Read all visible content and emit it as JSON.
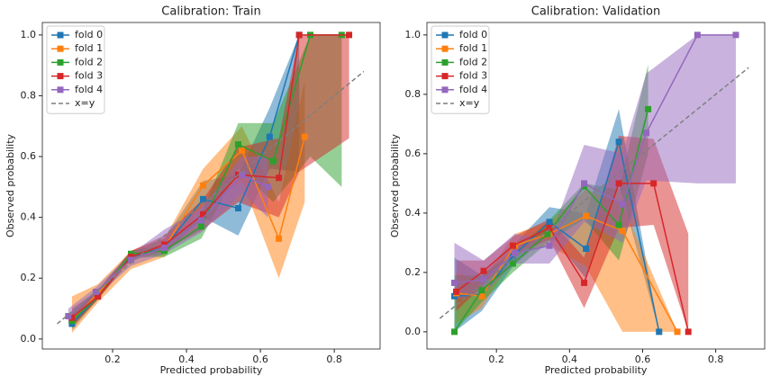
{
  "chart_data": [
    {
      "type": "line",
      "title": "Calibration: Train",
      "x_label": "Predicted probability",
      "y_label": "Observed probability",
      "xlim": [
        0.0098,
        0.924
      ],
      "ylim": [
        -0.033,
        1.041
      ],
      "xticks": [
        0.2,
        0.4,
        0.6,
        0.8
      ],
      "yticks": [
        {
          "value": 0,
          "label": "0.0"
        },
        0.2,
        0.4,
        0.6,
        0.8,
        {
          "value": 1,
          "label": "1.0"
        }
      ],
      "legend": "upper left",
      "series": [
        {
          "name": "fold 0",
          "color": "#1f77b4",
          "x": [
            0.09,
            0.16,
            0.25,
            0.34,
            0.445,
            0.54,
            0.625,
            0.705
          ],
          "values": [
            0.05,
            0.14,
            0.27,
            0.3,
            0.46,
            0.43,
            0.665,
            1.0
          ],
          "lower": [
            0.03,
            0.13,
            0.26,
            0.28,
            0.4,
            0.34,
            0.56,
            0.55
          ],
          "upper": [
            0.09,
            0.16,
            0.29,
            0.33,
            0.52,
            0.54,
            0.76,
            1.0
          ]
        },
        {
          "name": "fold 1",
          "color": "#ff7f0e",
          "x": [
            0.09,
            0.16,
            0.25,
            0.34,
            0.445,
            0.55,
            0.65,
            0.72
          ],
          "values": [
            0.06,
            0.15,
            0.26,
            0.3,
            0.505,
            0.62,
            0.33,
            0.665
          ],
          "lower": [
            0.02,
            0.12,
            0.23,
            0.27,
            0.44,
            0.52,
            0.2,
            0.45
          ],
          "upper": [
            0.14,
            0.18,
            0.29,
            0.33,
            0.56,
            0.7,
            0.45,
            0.85
          ]
        },
        {
          "name": "fold 2",
          "color": "#2ca02c",
          "x": [
            0.09,
            0.16,
            0.25,
            0.34,
            0.44,
            0.54,
            0.635,
            0.735,
            0.82
          ],
          "values": [
            0.06,
            0.14,
            0.28,
            0.29,
            0.37,
            0.64,
            0.585,
            1.0,
            1.0
          ],
          "lower": [
            0.04,
            0.13,
            0.27,
            0.27,
            0.33,
            0.56,
            0.45,
            0.6,
            0.5
          ],
          "upper": [
            0.08,
            0.16,
            0.29,
            0.31,
            0.41,
            0.71,
            0.71,
            1.0,
            1.0
          ]
        },
        {
          "name": "fold 3",
          "color": "#d62728",
          "x": [
            0.09,
            0.16,
            0.25,
            0.34,
            0.445,
            0.54,
            0.65,
            0.705,
            0.84
          ],
          "values": [
            0.07,
            0.14,
            0.27,
            0.31,
            0.41,
            0.54,
            0.53,
            1.0,
            1.0
          ],
          "lower": [
            0.04,
            0.13,
            0.26,
            0.29,
            0.36,
            0.45,
            0.4,
            0.55,
            0.66
          ],
          "upper": [
            0.1,
            0.16,
            0.29,
            0.34,
            0.46,
            0.63,
            0.66,
            1.0,
            1.0
          ]
        },
        {
          "name": "fold 4",
          "color": "#9467bd",
          "x": [
            0.08,
            0.155,
            0.25,
            0.34,
            0.44,
            0.55,
            0.62
          ],
          "values": [
            0.075,
            0.155,
            0.26,
            0.3,
            0.39,
            0.54,
            0.5
          ],
          "lower": [
            0.05,
            0.14,
            0.24,
            0.28,
            0.35,
            0.48,
            0.4
          ],
          "upper": [
            0.1,
            0.17,
            0.28,
            0.36,
            0.43,
            0.6,
            0.6
          ]
        },
        {
          "name": "x=y",
          "color": "#7f7f7f",
          "dashed": true,
          "x": [
            0.05,
            0.88
          ],
          "values": [
            0.05,
            0.88
          ]
        }
      ]
    },
    {
      "type": "line",
      "title": "Calibration: Validation",
      "x_label": "Predicted probability",
      "y_label": "Observed probability",
      "xlim": [
        0.0098,
        0.934
      ],
      "ylim": [
        -0.058,
        1.042
      ],
      "xticks": [
        0.2,
        0.4,
        0.6,
        0.8
      ],
      "yticks": [
        {
          "value": 0,
          "label": "0.0"
        },
        0.2,
        0.4,
        0.6,
        0.8,
        {
          "value": 1,
          "label": "1.0"
        }
      ],
      "legend": "upper left",
      "series": [
        {
          "name": "fold 0",
          "color": "#1f77b4",
          "x": [
            0.085,
            0.16,
            0.245,
            0.345,
            0.445,
            0.535,
            0.645
          ],
          "values": [
            0.12,
            0.125,
            0.255,
            0.37,
            0.28,
            0.64,
            0.0
          ],
          "lower": [
            0.0,
            0.07,
            0.22,
            0.33,
            0.18,
            0.5,
            0.0
          ],
          "upper": [
            0.25,
            0.19,
            0.29,
            0.42,
            0.4,
            0.75,
            0.0
          ]
        },
        {
          "name": "fold 1",
          "color": "#ff7f0e",
          "x": [
            0.09,
            0.16,
            0.25,
            0.345,
            0.445,
            0.545,
            0.695
          ],
          "values": [
            0.13,
            0.12,
            0.29,
            0.33,
            0.39,
            0.34,
            0.0
          ],
          "lower": [
            0.03,
            0.08,
            0.26,
            0.29,
            0.22,
            0.0,
            0.0
          ],
          "upper": [
            0.2,
            0.17,
            0.33,
            0.37,
            0.48,
            0.43,
            0.0
          ]
        },
        {
          "name": "fold 2",
          "color": "#2ca02c",
          "x": [
            0.085,
            0.16,
            0.245,
            0.34,
            0.44,
            0.535,
            0.615
          ],
          "values": [
            0.0,
            0.14,
            0.23,
            0.33,
            0.49,
            0.36,
            0.75
          ],
          "lower": [
            0.0,
            0.1,
            0.2,
            0.3,
            0.38,
            0.24,
            0.6
          ],
          "upper": [
            0.19,
            0.19,
            0.27,
            0.37,
            0.5,
            0.48,
            0.9
          ]
        },
        {
          "name": "fold 3",
          "color": "#d62728",
          "x": [
            0.09,
            0.165,
            0.245,
            0.345,
            0.44,
            0.535,
            0.63,
            0.725
          ],
          "values": [
            0.135,
            0.205,
            0.29,
            0.35,
            0.165,
            0.5,
            0.5,
            0.0
          ],
          "lower": [
            0.07,
            0.16,
            0.26,
            0.31,
            0.08,
            0.35,
            0.36,
            0.0
          ],
          "upper": [
            0.24,
            0.24,
            0.32,
            0.38,
            0.25,
            0.66,
            0.65,
            0.33
          ]
        },
        {
          "name": "fold 4",
          "color": "#9467bd",
          "x": [
            0.085,
            0.165,
            0.25,
            0.345,
            0.44,
            0.545,
            0.61,
            0.75,
            0.855
          ],
          "values": [
            0.165,
            0.175,
            0.265,
            0.29,
            0.5,
            0.43,
            0.67,
            1.0,
            1.0
          ],
          "lower": [
            0.11,
            0.13,
            0.23,
            0.23,
            0.37,
            0.3,
            0.51,
            0.5,
            0.5
          ],
          "upper": [
            0.3,
            0.24,
            0.33,
            0.31,
            0.63,
            0.6,
            0.87,
            1.0,
            1.0
          ]
        },
        {
          "name": "x=y",
          "color": "#7f7f7f",
          "dashed": true,
          "x": [
            0.045,
            0.89
          ],
          "values": [
            0.045,
            0.89
          ]
        }
      ]
    }
  ]
}
